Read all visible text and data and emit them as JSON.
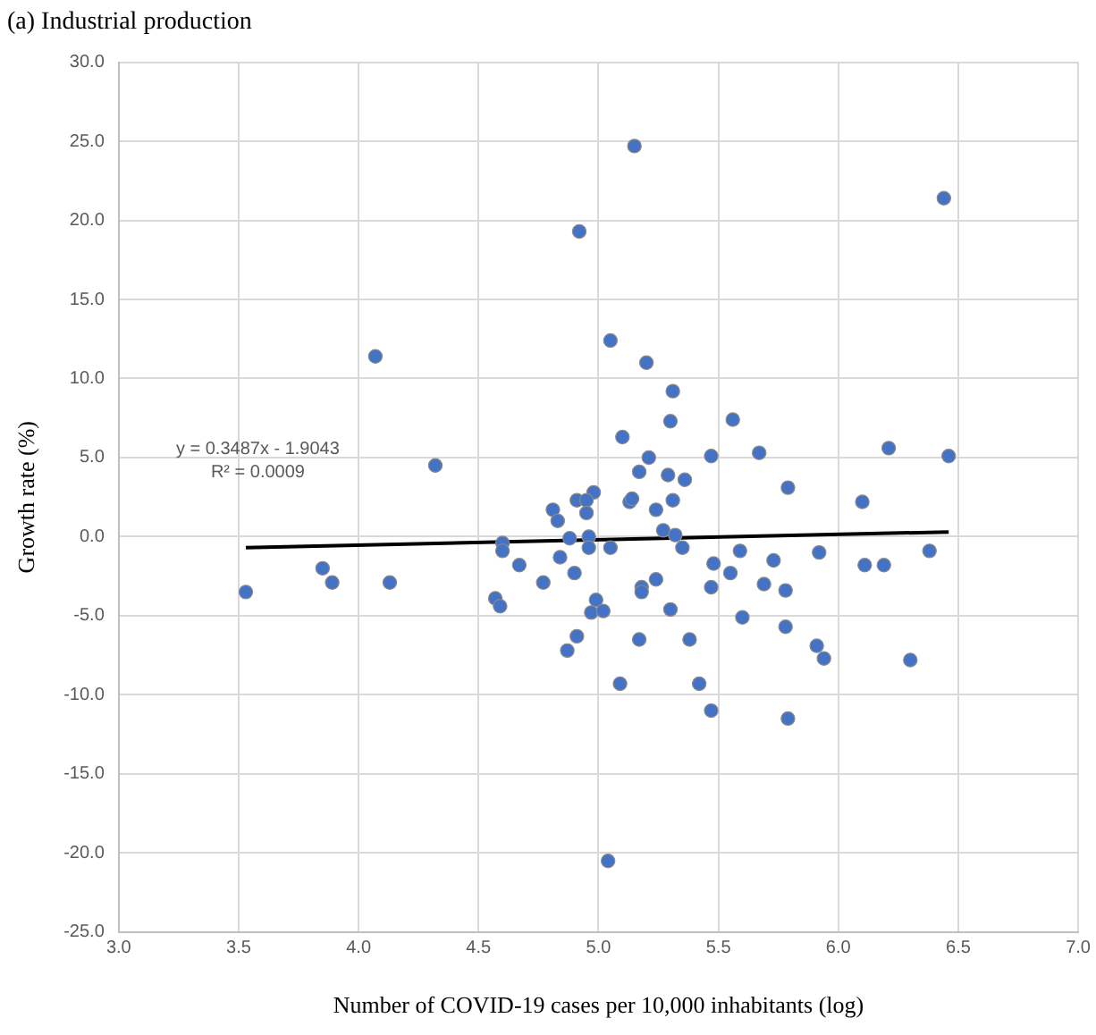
{
  "chart_data": {
    "type": "scatter",
    "title": "(a) Industrial production",
    "xlabel": "Number of COVID-19 cases per 10,000 inhabitants (log)",
    "ylabel": "Growth rate (%)",
    "annotations": [
      "y = 0.3487x - 1.9043",
      "R² = 0.0009"
    ],
    "series": [
      {
        "color": "#4472c4",
        "marker": "circle",
        "x": [
          4.92,
          4.07,
          4.32,
          5.15,
          6.44,
          5.05,
          5.2,
          5.31,
          5.3,
          5.56,
          5.1,
          6.21,
          5.67,
          5.21,
          5.47,
          6.46,
          5.17,
          5.29,
          5.36,
          5.79,
          4.98,
          6.1,
          4.81,
          4.91,
          4.95,
          5.13,
          5.14,
          5.31,
          4.83,
          4.95,
          5.24,
          5.27,
          5.32,
          4.88,
          4.96,
          4.96,
          5.05,
          5.35,
          4.84,
          5.48,
          5.59,
          5.73,
          5.92,
          6.11,
          6.19,
          6.38,
          4.77,
          4.9,
          5.18,
          5.18,
          5.24,
          5.47,
          5.55,
          5.69,
          5.78,
          4.99,
          4.97,
          5.02,
          5.3,
          5.6,
          5.78,
          4.91,
          4.87,
          5.17,
          5.38,
          5.91,
          5.94,
          6.3,
          5.09,
          5.42,
          5.47,
          5.79,
          5.04,
          4.6,
          4.6,
          4.67,
          3.53,
          3.85,
          3.89,
          4.13,
          4.57,
          4.59
        ],
        "values": [
          19.3,
          11.4,
          4.5,
          24.7,
          21.4,
          12.4,
          11.0,
          9.2,
          7.3,
          7.4,
          6.3,
          5.6,
          5.3,
          5.0,
          5.1,
          5.1,
          4.1,
          3.9,
          3.6,
          3.1,
          2.8,
          2.2,
          1.7,
          2.3,
          2.3,
          2.2,
          2.4,
          2.3,
          1.0,
          1.5,
          1.7,
          0.4,
          0.1,
          -0.1,
          0.0,
          -0.7,
          -0.7,
          -0.7,
          -1.3,
          -1.7,
          -0.9,
          -1.5,
          -1.0,
          -1.8,
          -1.8,
          -0.9,
          -2.9,
          -2.3,
          -3.2,
          -3.5,
          -2.7,
          -3.2,
          -2.3,
          -3.0,
          -3.4,
          -4.0,
          -4.8,
          -4.7,
          -4.6,
          -5.1,
          -5.7,
          -6.3,
          -7.2,
          -6.5,
          -6.5,
          -6.9,
          -7.7,
          -7.8,
          -9.3,
          -9.3,
          -11.0,
          -11.5,
          -20.5,
          -0.4,
          -0.9,
          -1.8,
          -3.5,
          -2.0,
          -2.9,
          -2.9,
          -3.9,
          -4.4
        ]
      },
      {
        "type": "line",
        "color": "#000000",
        "marker": "none",
        "x": [
          3.53,
          6.46
        ],
        "values": [
          -0.7,
          0.3
        ]
      }
    ],
    "xlim": [
      3,
      7
    ],
    "xticks": [
      {
        "value": 3,
        "label": "3.0"
      },
      {
        "value": 3.5,
        "label": "3.5"
      },
      {
        "value": 4,
        "label": "4.0"
      },
      {
        "value": 4.5,
        "label": "4.5"
      },
      {
        "value": 5,
        "label": "5.0"
      },
      {
        "value": 5.5,
        "label": "5.5"
      },
      {
        "value": 6,
        "label": "6.0"
      },
      {
        "value": 6.5,
        "label": "6.5"
      },
      {
        "value": 7,
        "label": "7.0"
      }
    ],
    "ylim": [
      -25,
      30
    ],
    "yticks": [
      {
        "value": -25,
        "label": "-25.0"
      },
      {
        "value": -20,
        "label": "-20.0"
      },
      {
        "value": -15,
        "label": "-15.0"
      },
      {
        "value": -10,
        "label": "-10.0"
      },
      {
        "value": -5,
        "label": "-5.0"
      },
      {
        "value": 0,
        "label": "0.0"
      },
      {
        "value": 5,
        "label": "5.0"
      },
      {
        "value": 10,
        "label": "10.0"
      },
      {
        "value": 15,
        "label": "15.0"
      },
      {
        "value": 20,
        "label": "20.0"
      },
      {
        "value": 25,
        "label": "25.0"
      },
      {
        "value": 30,
        "label": "30.0"
      }
    ],
    "grid": true,
    "legend": false
  }
}
